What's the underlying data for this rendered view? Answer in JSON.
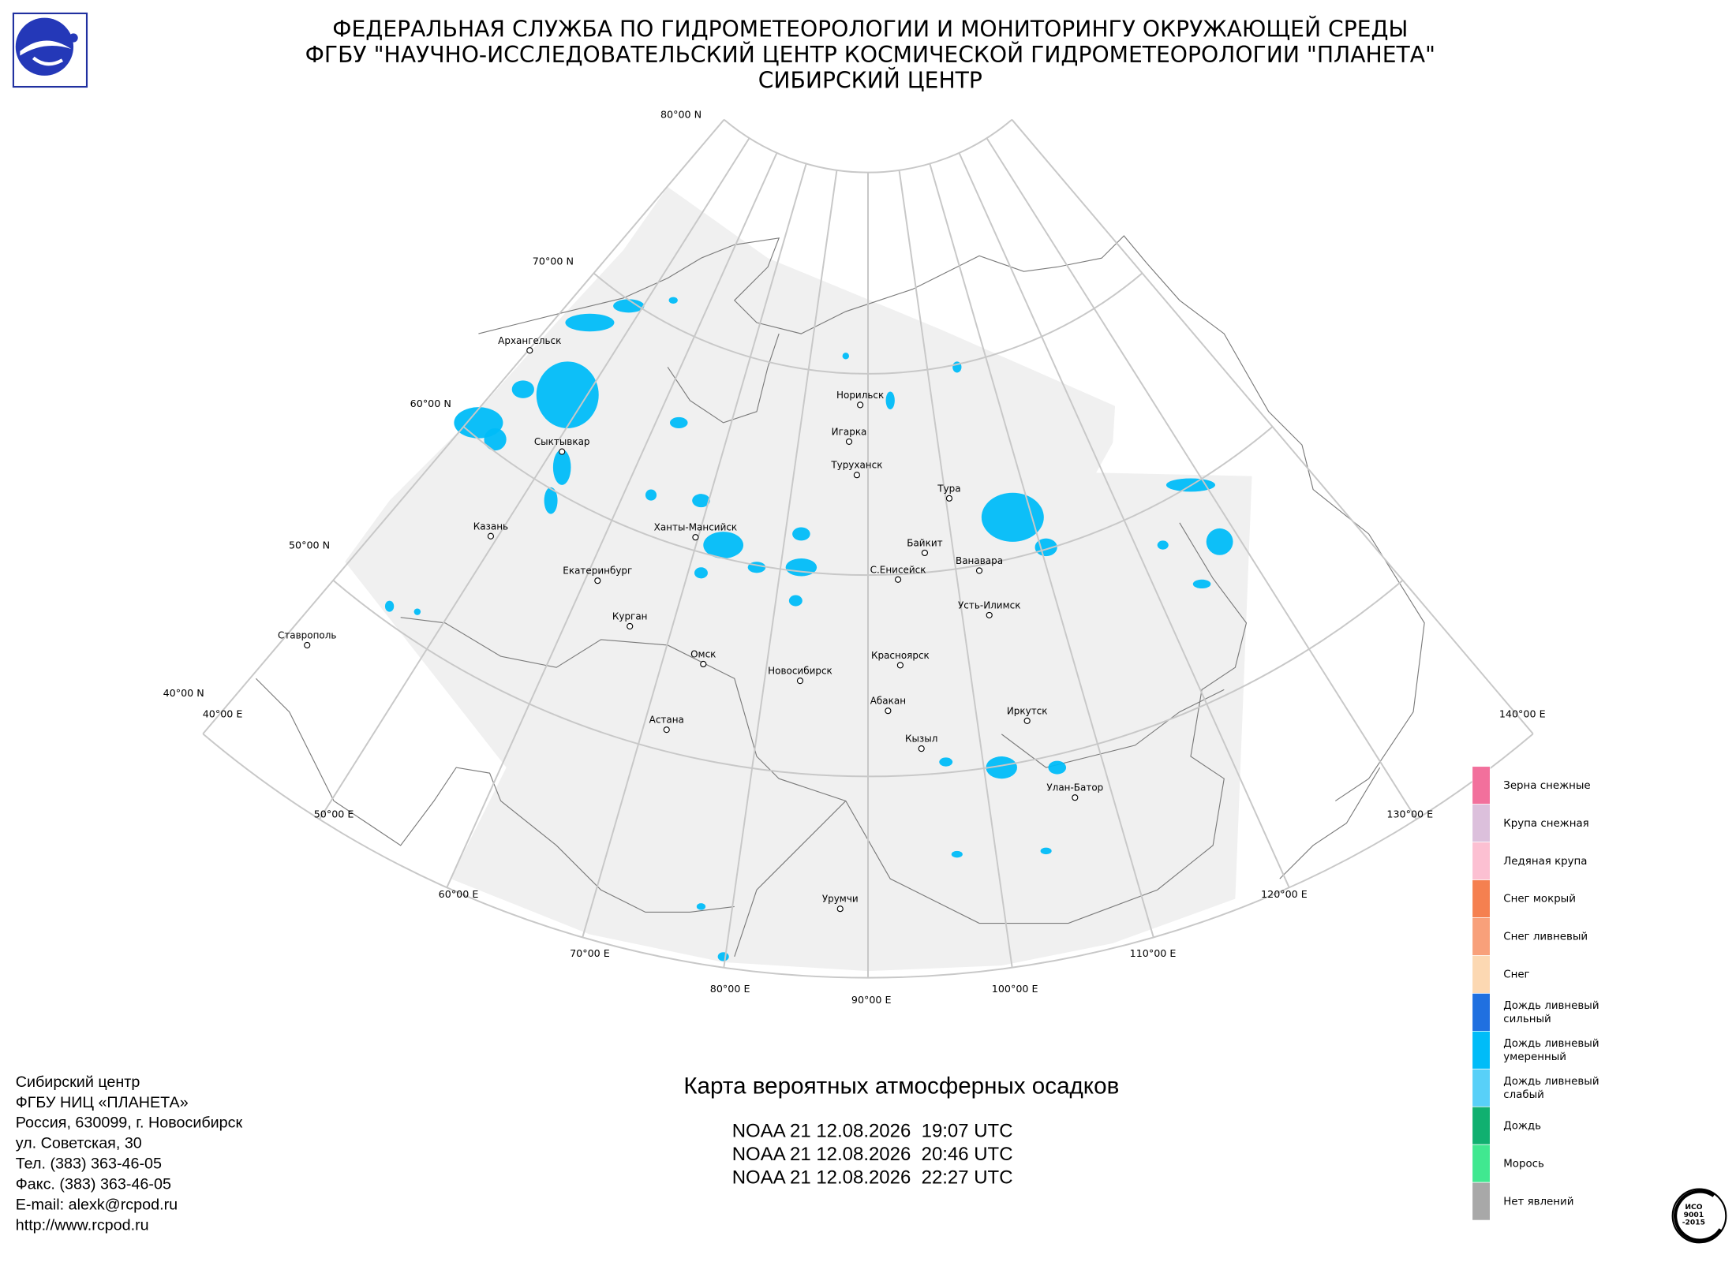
{
  "header": {
    "lines": [
      "ФЕДЕРАЛЬНАЯ СЛУЖБА ПО ГИДРОМЕТЕОРОЛОГИИ И МОНИТОРИНГУ ОКРУЖАЮЩЕЙ СРЕДЫ",
      "ФГБУ \"НАУЧНО-ИССЛЕДОВАТЕЛЬСКИЙ ЦЕНТР КОСМИЧЕСКОЙ ГИДРОМЕТЕОРОЛОГИИ \"ПЛАНЕТА\"",
      "СИБИРСКИЙ ЦЕНТР"
    ]
  },
  "map": {
    "lat_labels": [
      "80°00 N",
      "70°00 N",
      "60°00 N",
      "50°00 N",
      "40°00 N"
    ],
    "lon_labels": [
      "40°00 E",
      "50°00 E",
      "60°00 E",
      "70°00 E",
      "80°00 E",
      "90°00 E",
      "100°00 E",
      "110°00 E",
      "120°00 E",
      "130°00 E",
      "140°00 E"
    ],
    "cities": [
      "Архангельск",
      "Сыктывкар",
      "Казань",
      "Екатеринбург",
      "Курган",
      "Ставрополь",
      "Омск",
      "Астана",
      "Новосибирск",
      "Ханты-Мансийск",
      "Норильск",
      "Игарка",
      "Туруханск",
      "Тура",
      "Байкит",
      "Ванавара",
      "С.Енисейск",
      "Усть-Илимск",
      "Красноярск",
      "Абакан",
      "Кызыл",
      "Иркутск",
      "Улан-Батор",
      "Урумчи"
    ]
  },
  "legend": {
    "items": [
      {
        "lines": [
          "Зерна снежные"
        ],
        "color": "#f2709c"
      },
      {
        "lines": [
          "Крупа снежная"
        ],
        "color": "#dcc0dc"
      },
      {
        "lines": [
          "Ледяная крупа"
        ],
        "color": "#fcc0d2"
      },
      {
        "lines": [
          "Снег мокрый"
        ],
        "color": "#f58050"
      },
      {
        "lines": [
          "Снег ливневый"
        ],
        "color": "#f8a07a"
      },
      {
        "lines": [
          "Снег"
        ],
        "color": "#fcd8b2"
      },
      {
        "lines": [
          "Дождь ливневый",
          "сильный"
        ],
        "color": "#2070e0"
      },
      {
        "lines": [
          "Дождь ливневый",
          "умеренный"
        ],
        "color": "#00bcf8"
      },
      {
        "lines": [
          "Дождь ливневый",
          "слабый"
        ],
        "color": "#58d0f8"
      },
      {
        "lines": [
          "Дождь"
        ],
        "color": "#10b070"
      },
      {
        "lines": [
          "Морось"
        ],
        "color": "#40e890"
      },
      {
        "lines": [
          "Нет явлений"
        ],
        "color": "#a8a8a8"
      }
    ]
  },
  "title": "Карта вероятных атмосферных осадков",
  "passes": [
    "NOAA 21 12.08.2026  19:07 UTC",
    "NOAA 21 12.08.2026  20:46 UTC",
    "NOAA 21 12.08.2026  22:27 UTC"
  ],
  "contact": [
    "Сибирский центр",
    "ФГБУ НИЦ «ПЛАНЕТА»",
    "Россия, 630099, г. Новосибирск",
    "ул. Советская, 30",
    "Тел. (383) 363-46-05",
    "Факс. (383) 363-46-05",
    "E-mail: alexk@rcpod.ru",
    "http://www.rcpod.ru"
  ],
  "iso": [
    "ИСО",
    "9001",
    "-2015"
  ]
}
